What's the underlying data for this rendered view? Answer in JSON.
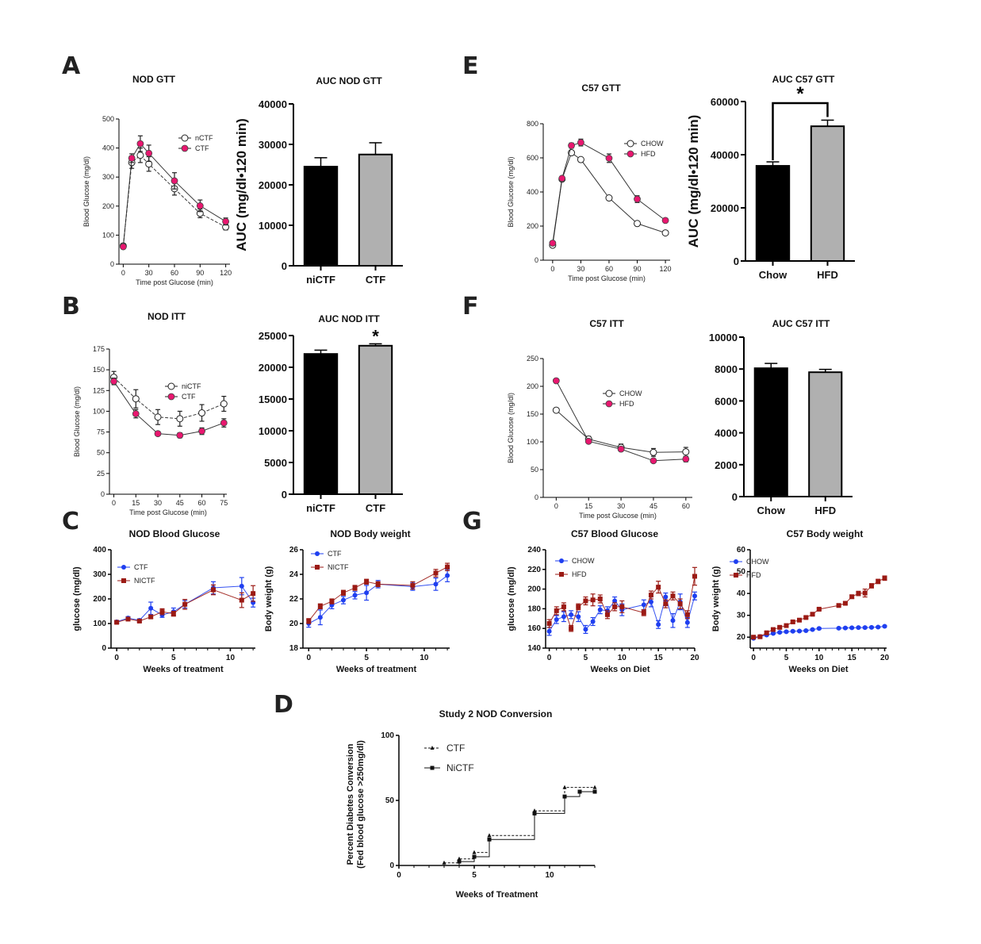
{
  "panels": [
    "A",
    "B",
    "C",
    "D",
    "E",
    "F",
    "G"
  ],
  "colors": {
    "pink": "#e8176f",
    "blue": "#1f3ff0",
    "darkred": "#9b1a14",
    "black": "#000000",
    "gray": "#b0b0b0"
  },
  "chart_data": [
    {
      "id": "nod-gtt",
      "panel": "A",
      "type": "line",
      "title": "NOD GTT",
      "xlabel": "Time post Glucose (min)",
      "ylabel": "Blood Glucose (mg/dl)",
      "xlim": [
        -5,
        125
      ],
      "ylim": [
        0,
        500
      ],
      "xticks": [
        0,
        30,
        60,
        90,
        120
      ],
      "yticks": [
        0,
        100,
        200,
        300,
        400,
        500
      ],
      "legend": "top-right",
      "series": [
        {
          "name": "nCTF",
          "marker": "open-circle",
          "x": [
            0,
            10,
            20,
            30,
            60,
            90,
            120
          ],
          "y": [
            63,
            350,
            375,
            345,
            260,
            175,
            128
          ],
          "err": [
            5,
            20,
            25,
            25,
            22,
            15,
            10
          ]
        },
        {
          "name": "CTF",
          "marker": "pink-circle",
          "x": [
            0,
            10,
            20,
            30,
            60,
            90,
            120
          ],
          "y": [
            60,
            365,
            415,
            382,
            287,
            201,
            147
          ],
          "err": [
            5,
            15,
            27,
            28,
            28,
            20,
            12
          ]
        }
      ]
    },
    {
      "id": "auc-nod-gtt",
      "panel": "A",
      "type": "bar",
      "title": "AUC NOD GTT",
      "ylabel": "AUC (mg/dl•120 min)",
      "ylim": [
        0,
        40000
      ],
      "yticks": [
        0,
        10000,
        20000,
        30000,
        40000
      ],
      "categories": [
        "niCTF",
        "CTF"
      ],
      "values": [
        24500,
        27500
      ],
      "err": [
        2200,
        2900
      ],
      "significance": ""
    },
    {
      "id": "nod-itt",
      "panel": "B",
      "type": "line",
      "title": "NOD ITT",
      "xlabel": "Time post Glucose (min)",
      "ylabel": "Blood Glucose (mg/dl)",
      "xlim": [
        -3,
        77
      ],
      "ylim": [
        0,
        175
      ],
      "xticks": [
        0,
        15,
        30,
        45,
        60,
        75
      ],
      "yticks": [
        0,
        25,
        50,
        75,
        100,
        125,
        150,
        175
      ],
      "legend": "center-right",
      "series": [
        {
          "name": "niCTF",
          "marker": "open-circle",
          "x": [
            0,
            15,
            30,
            45,
            60,
            75
          ],
          "y": [
            141,
            115,
            93,
            91,
            98,
            109
          ],
          "err": [
            7,
            11,
            9,
            9,
            10,
            9
          ]
        },
        {
          "name": "CTF",
          "marker": "pink-circle",
          "x": [
            0,
            15,
            30,
            45,
            60,
            75
          ],
          "y": [
            136,
            97,
            73,
            71,
            76,
            86
          ],
          "err": [
            4,
            5,
            2,
            3,
            4,
            5
          ]
        }
      ]
    },
    {
      "id": "auc-nod-itt",
      "panel": "B",
      "type": "bar",
      "title": "AUC NOD ITT",
      "ylabel": "",
      "ylim": [
        0,
        25000
      ],
      "yticks": [
        0,
        5000,
        10000,
        15000,
        20000,
        25000
      ],
      "categories": [
        "niCTF",
        "CTF"
      ],
      "values": [
        22100,
        23400
      ],
      "err": [
        600,
        300
      ],
      "significance": "*"
    },
    {
      "id": "nod-blood-glucose",
      "panel": "C",
      "type": "line",
      "title": "NOD Blood Glucose",
      "xlabel": "Weeks of treatment",
      "ylabel": "glucose (mg/dl)",
      "xlim": [
        -0.5,
        12.2
      ],
      "ylim": [
        0,
        400
      ],
      "xticks": [
        0,
        5,
        10
      ],
      "yticks": [
        0,
        100,
        200,
        300,
        400
      ],
      "legend": "top-left",
      "series": [
        {
          "name": "CTF",
          "marker": "blue-circle",
          "x": [
            0,
            1,
            2,
            3,
            4,
            5,
            6,
            8.5,
            11,
            12
          ],
          "y": [
            107,
            122,
            113,
            162,
            135,
            148,
            178,
            245,
            252,
            185
          ],
          "err": [
            5,
            6,
            6,
            25,
            10,
            15,
            15,
            25,
            35,
            18
          ]
        },
        {
          "name": "NICTF",
          "marker": "red-square",
          "x": [
            0,
            1,
            2,
            3,
            4,
            5,
            6,
            8.5,
            11,
            12
          ],
          "y": [
            105,
            118,
            110,
            127,
            148,
            140,
            178,
            237,
            195,
            222
          ],
          "err": [
            4,
            6,
            5,
            5,
            12,
            10,
            20,
            20,
            30,
            32
          ]
        }
      ]
    },
    {
      "id": "nod-body-weight",
      "panel": "C",
      "type": "line",
      "title": "NOD Body weight",
      "xlabel": "Weeks of treatment",
      "ylabel": "Body weight (g)",
      "xlim": [
        -0.5,
        12.2
      ],
      "ylim": [
        18,
        26
      ],
      "xticks": [
        0,
        5,
        10
      ],
      "yticks": [
        18,
        20,
        22,
        24,
        26
      ],
      "legend": "top-left",
      "series": [
        {
          "name": "CTF",
          "marker": "blue-circle",
          "x": [
            0,
            1,
            2,
            3,
            4,
            5,
            6,
            9,
            11,
            12
          ],
          "y": [
            20.0,
            20.5,
            21.5,
            21.9,
            22.3,
            22.5,
            23.2,
            23.0,
            23.2,
            23.9
          ],
          "err": [
            0.3,
            0.6,
            0.3,
            0.3,
            0.3,
            0.6,
            0.3,
            0.3,
            0.5,
            0.5
          ]
        },
        {
          "name": "NICTF",
          "marker": "red-square",
          "x": [
            0,
            1,
            2,
            3,
            4,
            5,
            6,
            9,
            11,
            12
          ],
          "y": [
            20.2,
            21.4,
            21.8,
            22.5,
            22.9,
            23.4,
            23.2,
            23.1,
            24.1,
            24.6
          ],
          "err": [
            0.2,
            0.2,
            0.2,
            0.2,
            0.2,
            0.2,
            0.2,
            0.3,
            0.3,
            0.3
          ]
        }
      ]
    },
    {
      "id": "nod-conversion",
      "panel": "D",
      "type": "line",
      "title": "Study 2 NOD Conversion",
      "xlabel": "Weeks of Treatment",
      "ylabel": "Percent  Diabetes Conversion",
      "ylabel2": "(Fed blood glucose >250mg/dl)",
      "xlim": [
        0,
        13
      ],
      "ylim": [
        0,
        100
      ],
      "xticks": [
        0,
        5,
        10
      ],
      "yticks": [
        0,
        50,
        100
      ],
      "legend": "top-left",
      "step": true,
      "series": [
        {
          "name": "CTF",
          "marker": "triangle",
          "style": "dashed",
          "x": [
            0,
            3,
            4,
            5,
            6,
            9,
            11,
            13
          ],
          "y": [
            0,
            2,
            5,
            10,
            23,
            42,
            60,
            60
          ]
        },
        {
          "name": "NiCTF",
          "marker": "square",
          "style": "solid",
          "x": [
            0,
            4,
            5,
            6,
            9,
            11,
            12,
            13
          ],
          "y": [
            0,
            3,
            6.7,
            20,
            40,
            53,
            56.7,
            56.7
          ]
        }
      ]
    },
    {
      "id": "c57-gtt",
      "panel": "E",
      "type": "line",
      "title": "C57 GTT",
      "xlabel": "Time post Glucose (min)",
      "ylabel": "Blood Glucose (mg/dl)",
      "xlim": [
        -10,
        125
      ],
      "ylim": [
        0,
        800
      ],
      "xticks": [
        0,
        30,
        60,
        90,
        120
      ],
      "yticks": [
        0,
        200,
        400,
        600,
        800
      ],
      "legend": "top-right",
      "series": [
        {
          "name": "CHOW",
          "marker": "open-circle",
          "x": [
            0,
            10,
            20,
            30,
            60,
            90,
            120
          ],
          "y": [
            88,
            475,
            630,
            590,
            365,
            215,
            160
          ],
          "err": [
            5,
            10,
            10,
            12,
            12,
            8,
            6
          ]
        },
        {
          "name": "HFD",
          "marker": "pink-circle",
          "x": [
            0,
            10,
            20,
            30,
            60,
            90,
            120
          ],
          "y": [
            100,
            480,
            672,
            690,
            598,
            358,
            233
          ],
          "err": [
            6,
            10,
            15,
            20,
            25,
            20,
            8
          ]
        }
      ]
    },
    {
      "id": "auc-c57-gtt",
      "panel": "E",
      "type": "bar",
      "title": "AUC C57 GTT",
      "ylabel": "AUC (mg/dl•120 min)",
      "ylim": [
        0,
        60000
      ],
      "yticks": [
        0,
        20000,
        40000,
        60000
      ],
      "categories": [
        "Chow",
        "HFD"
      ],
      "values": [
        35800,
        50700
      ],
      "err": [
        1500,
        2300
      ],
      "significance": "*"
    },
    {
      "id": "c57-itt",
      "panel": "F",
      "type": "line",
      "title": "C57 ITT",
      "xlabel": "Time post Glucose (min)",
      "ylabel": "Blood Glucose (mg/dl)",
      "xlim": [
        -6,
        63
      ],
      "ylim": [
        0,
        250
      ],
      "xticks": [
        0,
        15,
        30,
        45,
        60
      ],
      "yticks": [
        0,
        50,
        100,
        150,
        200,
        250
      ],
      "legend": "center-right",
      "series": [
        {
          "name": "CHOW",
          "marker": "open-circle",
          "x": [
            0,
            15,
            30,
            45,
            60
          ],
          "y": [
            157,
            105,
            90,
            81,
            82
          ],
          "err": [
            3,
            5,
            6,
            7,
            8
          ]
        },
        {
          "name": "HFD",
          "marker": "pink-circle",
          "x": [
            0,
            15,
            30,
            45,
            60
          ],
          "y": [
            210,
            101,
            87,
            66,
            69
          ],
          "err": [
            3,
            3,
            4,
            3,
            5
          ]
        }
      ]
    },
    {
      "id": "auc-c57-itt",
      "panel": "F",
      "type": "bar",
      "title": "AUC C57 ITT",
      "ylabel": "",
      "ylim": [
        0,
        10000
      ],
      "yticks": [
        0,
        2000,
        4000,
        6000,
        8000,
        10000
      ],
      "categories": [
        "Chow",
        "HFD"
      ],
      "values": [
        8050,
        7800
      ],
      "err": [
        300,
        180
      ],
      "significance": ""
    },
    {
      "id": "c57-blood-glucose",
      "panel": "G",
      "type": "line",
      "title": "C57 Blood Glucose",
      "xlabel": "Weeks on Diet",
      "ylabel": "glucose (mg/dl)",
      "xlim": [
        -0.5,
        20
      ],
      "ylim": [
        140,
        240
      ],
      "xticks": [
        0,
        5,
        10,
        15,
        20
      ],
      "yticks": [
        140,
        160,
        180,
        200,
        220,
        240
      ],
      "legend": "top-left",
      "series": [
        {
          "name": "CHOW",
          "marker": "blue-circle",
          "x": [
            0,
            1,
            2,
            3,
            4,
            5,
            6,
            7,
            8,
            9,
            10,
            13,
            14,
            15,
            16,
            17,
            18,
            19,
            20
          ],
          "y": [
            157,
            169,
            172,
            174,
            172,
            159,
            167,
            179,
            178,
            188,
            179,
            184,
            187,
            164,
            192,
            168,
            187,
            166,
            193
          ],
          "err": [
            4,
            4,
            5,
            4,
            5,
            4,
            4,
            4,
            4,
            4,
            6,
            5,
            5,
            4,
            4,
            7,
            8,
            5,
            4
          ]
        },
        {
          "name": "HFD",
          "marker": "red-square",
          "x": [
            0,
            1,
            2,
            3,
            4,
            5,
            6,
            7,
            8,
            9,
            10,
            13,
            14,
            15,
            16,
            17,
            18,
            19,
            20
          ],
          "y": [
            165,
            178,
            182,
            160,
            182,
            188,
            189,
            190,
            174,
            182,
            182,
            176,
            194,
            202,
            185,
            193,
            185,
            174,
            213
          ],
          "err": [
            4,
            4,
            4,
            3,
            3,
            4,
            6,
            4,
            4,
            4,
            6,
            3,
            4,
            6,
            4,
            4,
            5,
            4,
            9
          ]
        }
      ]
    },
    {
      "id": "c57-body-weight",
      "panel": "G",
      "type": "line",
      "title": "C57 Body weight",
      "xlabel": "Weeks on Diet",
      "ylabel": "Body weight (g)",
      "xlim": [
        -0.5,
        20.3
      ],
      "ylim": [
        15,
        60
      ],
      "xticks": [
        0,
        5,
        10,
        15,
        20
      ],
      "yticks": [
        20,
        30,
        40,
        50,
        60
      ],
      "legend": "top-left",
      "series": [
        {
          "name": "CHOW",
          "marker": "blue-circle",
          "x": [
            0,
            1,
            2,
            3,
            4,
            5,
            6,
            7,
            8,
            9,
            10,
            13,
            14,
            15,
            16,
            17,
            18,
            19,
            20
          ],
          "y": [
            19.5,
            20.3,
            21.0,
            21.7,
            22.2,
            22.5,
            22.7,
            22.8,
            23.0,
            23.5,
            24.0,
            24.1,
            24.2,
            24.3,
            24.4,
            24.4,
            24.5,
            24.6,
            25.0
          ],
          "err": [
            0.3,
            0.3,
            0.3,
            0.3,
            0.3,
            0.3,
            0.3,
            0.3,
            0.3,
            0.3,
            0.3,
            0.3,
            0.3,
            0.3,
            0.3,
            0.3,
            0.3,
            0.3,
            0.3
          ]
        },
        {
          "name": "HFD",
          "marker": "red-square",
          "x": [
            0,
            1,
            2,
            3,
            4,
            5,
            6,
            7,
            8,
            9,
            10,
            13,
            14,
            15,
            16,
            17,
            18,
            19,
            20
          ],
          "y": [
            20.0,
            20.2,
            22.0,
            23.5,
            24.5,
            25.3,
            27.0,
            27.8,
            29.0,
            30.5,
            32.8,
            34.5,
            35.5,
            38.5,
            40.0,
            40.2,
            43.5,
            45.5,
            47.0
          ],
          "err": [
            0.4,
            0.4,
            0.5,
            0.5,
            0.5,
            0.5,
            0.5,
            0.5,
            0.5,
            0.5,
            0.5,
            0.5,
            0.5,
            0.8,
            1.0,
            1.8,
            1.0,
            1.0,
            1.0
          ]
        }
      ]
    }
  ]
}
